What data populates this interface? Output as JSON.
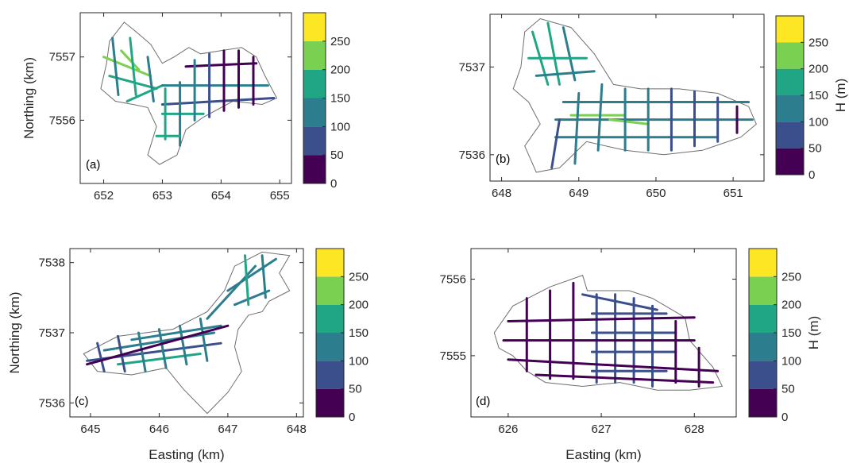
{
  "colorscale": {
    "levels": [
      {
        "from": 0,
        "to": 50,
        "color": "#440154"
      },
      {
        "from": 50,
        "to": 100,
        "color": "#3b4f8c"
      },
      {
        "from": 100,
        "to": 150,
        "color": "#2c7e8e"
      },
      {
        "from": 150,
        "to": 200,
        "color": "#21a685"
      },
      {
        "from": 200,
        "to": 250,
        "color": "#7ad151"
      },
      {
        "from": 250,
        "to": 300,
        "color": "#fde725"
      }
    ],
    "ticks": [
      "0",
      "50",
      "100",
      "150",
      "200",
      "250"
    ],
    "outline_color": "#6e6e6e"
  },
  "chart_data": [
    {
      "type": "heatmap",
      "panel": "(a)",
      "xlim": [
        651.6,
        655.2
      ],
      "ylim": [
        7555.0,
        7557.7
      ],
      "xticks": [
        "652",
        "653",
        "654",
        "655"
      ],
      "yticks": [
        "7556",
        "7557"
      ],
      "xlabel": "",
      "ylabel": "Northing (km)",
      "colorbar_label": ""
    },
    {
      "type": "heatmap",
      "panel": "(b)",
      "xlim": [
        647.85,
        651.4
      ],
      "ylim": [
        7535.7,
        7537.6
      ],
      "xticks": [
        "648",
        "649",
        "650",
        "651"
      ],
      "yticks": [
        "7536",
        "7537"
      ],
      "xlabel": "",
      "ylabel": "",
      "colorbar_label": "H (m)"
    },
    {
      "type": "heatmap",
      "panel": "(c)",
      "xlim": [
        644.7,
        648.1
      ],
      "ylim": [
        7535.8,
        7538.2
      ],
      "xticks": [
        "645",
        "646",
        "647",
        "648"
      ],
      "yticks": [
        "7536",
        "7537",
        "7538"
      ],
      "xlabel": "Easting (km)",
      "ylabel": "Northing (km)",
      "colorbar_label": ""
    },
    {
      "type": "heatmap",
      "panel": "(d)",
      "xlim": [
        625.6,
        628.45
      ],
      "ylim": [
        7554.2,
        7556.4
      ],
      "xticks": [
        "626",
        "627",
        "628"
      ],
      "yticks": [
        "7555",
        "7556"
      ],
      "xlabel": "Easting (km)",
      "ylabel": "",
      "colorbar_label": "H (m)"
    }
  ]
}
